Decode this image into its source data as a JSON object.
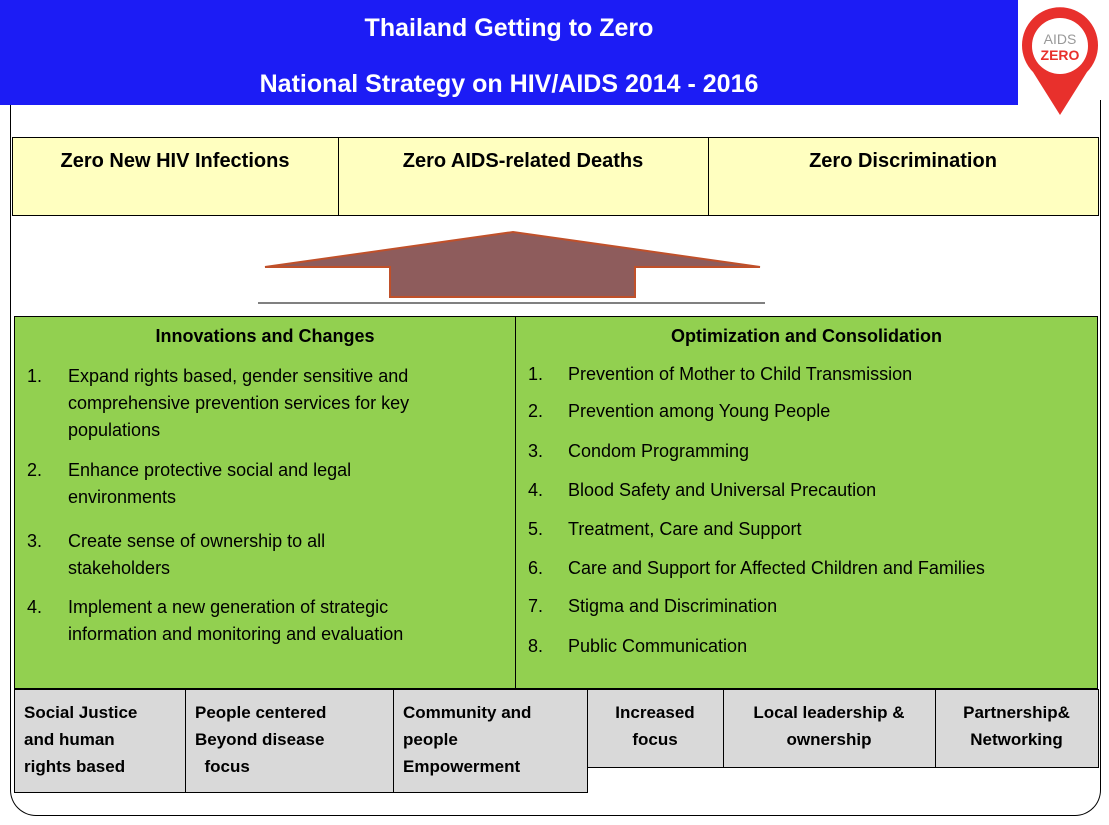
{
  "header": {
    "title": "Thailand Getting to Zero",
    "subtitle": "National Strategy on HIV/AIDS 2014 - 2016",
    "logo": [
      "AIDS",
      "ZERO"
    ]
  },
  "goals": [
    "Zero New HIV Infections",
    "Zero AIDS-related Deaths",
    "Zero Discrimination"
  ],
  "left_panel": {
    "title": "Innovations and Changes",
    "items": [
      {
        "number": "1.",
        "lines": [
          "Expand rights based, gender sensitive and",
          "comprehensive prevention services for key",
          "populations"
        ]
      },
      {
        "number": "2.",
        "lines": [
          "Enhance protective social and legal",
          "environments"
        ]
      },
      {
        "number": "3.",
        "lines": [
          "Create sense of ownership to all",
          "stakeholders"
        ]
      },
      {
        "number": "4.",
        "lines": [
          "Implement a new generation of strategic",
          "information and monitoring and evaluation"
        ]
      }
    ]
  },
  "right_panel": {
    "title": "Optimization and Consolidation",
    "items": [
      {
        "number": "1.",
        "lines": [
          "Prevention of Mother to Child Transmission"
        ]
      },
      {
        "number": "2.",
        "lines": [
          "Prevention among Young People"
        ]
      },
      {
        "number": "3.",
        "lines": [
          "Condom Programming"
        ]
      },
      {
        "number": "4.",
        "lines": [
          "Blood Safety and Universal Precaution"
        ]
      },
      {
        "number": "5.",
        "lines": [
          "Treatment, Care and Support"
        ]
      },
      {
        "number": "6.",
        "lines": [
          "Care and Support for Affected Children and Families"
        ]
      },
      {
        "number": "7.",
        "lines": [
          "Stigma and Discrimination"
        ]
      },
      {
        "number": "8.",
        "lines": [
          "Public Communication"
        ]
      }
    ]
  },
  "principles": [
    [
      "Social Justice",
      "and human",
      "rights based"
    ],
    [
      "People centered",
      "Beyond disease",
      "  focus"
    ],
    [
      "Community and",
      "people",
      "Empowerment"
    ],
    [
      "Increased",
      "focus"
    ],
    [
      "Local leadership &",
      "ownership"
    ],
    [
      "Partnership&",
      "Networking"
    ]
  ]
}
